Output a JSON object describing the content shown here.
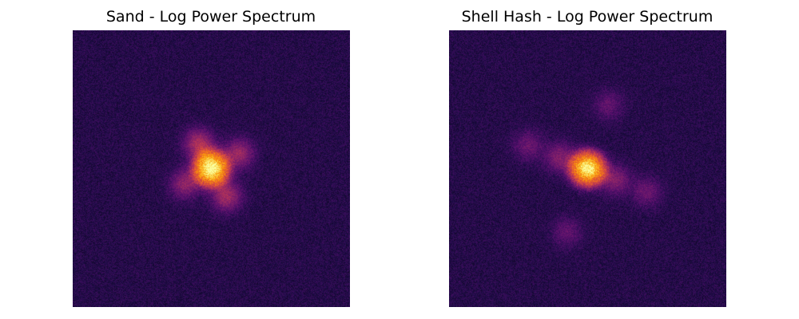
{
  "chart_data": [
    {
      "type": "heatmap",
      "title": "Sand - Log Power Spectrum",
      "colormap": "inferno",
      "axes": "off",
      "features": {
        "central_peak": {
          "center": [
            0.0,
            0.0
          ],
          "radius": 0.145,
          "peak_level": 1.0
        },
        "side_lobes": [
          {
            "center": [
              -0.09,
              -0.18
            ],
            "strength": 0.32
          },
          {
            "center": [
              0.2,
              -0.11
            ],
            "strength": 0.28
          },
          {
            "center": [
              0.11,
              0.2
            ],
            "strength": 0.3
          },
          {
            "center": [
              -0.19,
              0.11
            ],
            "strength": 0.25
          }
        ],
        "background_level": 0.14,
        "noise_level": 0.06
      }
    },
    {
      "type": "heatmap",
      "title": "Shell Hash - Log Power Spectrum",
      "colormap": "inferno",
      "axes": "off",
      "features": {
        "central_peak": {
          "center": [
            0.0,
            0.0
          ],
          "radius": 0.145,
          "peak_level": 0.97
        },
        "side_lobes": [
          {
            "center": [
              -0.2,
              -0.08
            ],
            "strength": 0.22
          },
          {
            "center": [
              0.2,
              0.08
            ],
            "strength": 0.22
          },
          {
            "center": [
              -0.43,
              -0.17
            ],
            "strength": 0.16
          },
          {
            "center": [
              0.43,
              0.17
            ],
            "strength": 0.16
          },
          {
            "center": [
              0.15,
              -0.46
            ],
            "strength": 0.14
          },
          {
            "center": [
              -0.15,
              0.46
            ],
            "strength": 0.14
          }
        ],
        "background_level": 0.14,
        "noise_level": 0.06
      }
    }
  ]
}
